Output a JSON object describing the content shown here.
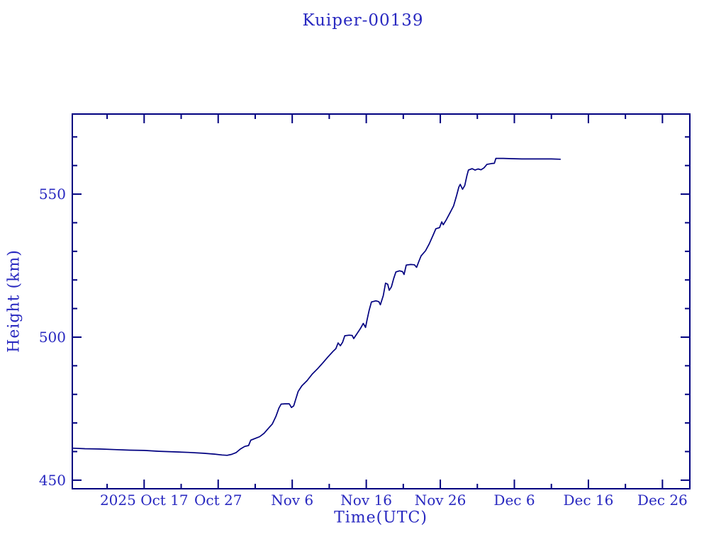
{
  "title": "Kuiper-00139",
  "colors": {
    "text": "#2828c0",
    "line": "#000080",
    "frame": "#000080",
    "background": "#ffffff"
  },
  "chart_data": {
    "type": "line",
    "title": "Kuiper-00139",
    "xlabel": "Time(UTC)",
    "ylabel": "Height (km)",
    "x_unit": "days since 2025 Oct 17 (UTC)",
    "xlim": [
      -9.7,
      73.7
    ],
    "ylim": [
      447,
      578
    ],
    "grid": false,
    "legend": false,
    "x_major_ticks": [
      {
        "value": 0,
        "label": "2025 Oct 17"
      },
      {
        "value": 10,
        "label": "Oct 27"
      },
      {
        "value": 20,
        "label": "Nov  6"
      },
      {
        "value": 30,
        "label": "Nov 16"
      },
      {
        "value": 40,
        "label": "Nov 26"
      },
      {
        "value": 50,
        "label": "Dec  6"
      },
      {
        "value": 60,
        "label": "Dec 16"
      },
      {
        "value": 70,
        "label": "Dec 26"
      }
    ],
    "x_minor_ticks": [
      -5,
      5,
      15,
      25,
      35,
      45,
      55,
      65
    ],
    "y_major_ticks": [
      {
        "value": 450,
        "label": "450"
      },
      {
        "value": 500,
        "label": "500"
      },
      {
        "value": 550,
        "label": "550"
      }
    ],
    "y_minor_ticks": [
      460,
      470,
      480,
      490,
      510,
      520,
      530,
      540,
      560,
      570
    ],
    "series": [
      {
        "name": "height",
        "points": [
          [
            -9.7,
            461.2
          ],
          [
            -8,
            461.0
          ],
          [
            -6,
            460.9
          ],
          [
            -4,
            460.7
          ],
          [
            -2,
            460.5
          ],
          [
            0,
            460.4
          ],
          [
            2,
            460.1
          ],
          [
            4,
            459.9
          ],
          [
            6,
            459.7
          ],
          [
            8,
            459.4
          ],
          [
            9.5,
            459.1
          ],
          [
            10.5,
            458.8
          ],
          [
            11.2,
            458.7
          ],
          [
            11.8,
            459.0
          ],
          [
            12.4,
            459.6
          ],
          [
            13.0,
            460.9
          ],
          [
            13.6,
            461.8
          ],
          [
            14.1,
            462.1
          ],
          [
            14.4,
            464.0
          ],
          [
            15.0,
            464.6
          ],
          [
            15.6,
            465.2
          ],
          [
            16.2,
            466.4
          ],
          [
            16.8,
            468.2
          ],
          [
            17.3,
            469.6
          ],
          [
            17.8,
            472.3
          ],
          [
            18.2,
            475.2
          ],
          [
            18.5,
            476.6
          ],
          [
            19.0,
            476.7
          ],
          [
            19.6,
            476.7
          ],
          [
            19.9,
            475.4
          ],
          [
            20.2,
            476.0
          ],
          [
            20.5,
            478.5
          ],
          [
            20.8,
            481.0
          ],
          [
            21.3,
            483.0
          ],
          [
            22.0,
            484.8
          ],
          [
            22.7,
            487.1
          ],
          [
            23.4,
            488.9
          ],
          [
            24.1,
            490.9
          ],
          [
            24.8,
            493.0
          ],
          [
            25.5,
            495.0
          ],
          [
            25.9,
            496.0
          ],
          [
            26.2,
            498.0
          ],
          [
            26.5,
            497.0
          ],
          [
            26.8,
            498.2
          ],
          [
            27.1,
            500.5
          ],
          [
            27.7,
            500.7
          ],
          [
            28.1,
            500.6
          ],
          [
            28.3,
            499.5
          ],
          [
            28.7,
            501.0
          ],
          [
            29.2,
            503.0
          ],
          [
            29.6,
            504.8
          ],
          [
            29.9,
            503.4
          ],
          [
            30.1,
            506.0
          ],
          [
            30.4,
            509.5
          ],
          [
            30.7,
            512.3
          ],
          [
            31.3,
            512.7
          ],
          [
            31.7,
            512.4
          ],
          [
            31.9,
            511.3
          ],
          [
            32.3,
            514.5
          ],
          [
            32.6,
            518.9
          ],
          [
            32.9,
            518.5
          ],
          [
            33.1,
            516.4
          ],
          [
            33.4,
            517.6
          ],
          [
            33.7,
            520.5
          ],
          [
            34.0,
            522.8
          ],
          [
            34.5,
            523.2
          ],
          [
            34.9,
            522.9
          ],
          [
            35.1,
            521.9
          ],
          [
            35.4,
            525.2
          ],
          [
            36.0,
            525.4
          ],
          [
            36.5,
            525.3
          ],
          [
            36.8,
            524.4
          ],
          [
            37.1,
            526.5
          ],
          [
            37.4,
            528.4
          ],
          [
            38.0,
            530.2
          ],
          [
            38.5,
            532.6
          ],
          [
            39.0,
            535.5
          ],
          [
            39.4,
            537.9
          ],
          [
            39.9,
            538.3
          ],
          [
            40.2,
            540.3
          ],
          [
            40.4,
            539.3
          ],
          [
            40.8,
            541.0
          ],
          [
            41.3,
            543.4
          ],
          [
            41.8,
            545.9
          ],
          [
            42.2,
            549.5
          ],
          [
            42.5,
            552.5
          ],
          [
            42.7,
            553.4
          ],
          [
            43.0,
            551.7
          ],
          [
            43.3,
            553.0
          ],
          [
            43.6,
            556.5
          ],
          [
            43.8,
            558.4
          ],
          [
            44.3,
            558.9
          ],
          [
            44.7,
            558.4
          ],
          [
            45.1,
            558.8
          ],
          [
            45.5,
            558.5
          ],
          [
            45.9,
            559.2
          ],
          [
            46.3,
            560.4
          ],
          [
            46.9,
            560.7
          ],
          [
            47.3,
            560.8
          ],
          [
            47.5,
            562.5
          ],
          [
            48.5,
            562.5
          ],
          [
            49.6,
            562.4
          ],
          [
            51.0,
            562.3
          ],
          [
            53.0,
            562.3
          ],
          [
            55.0,
            562.3
          ],
          [
            56.2,
            562.2
          ]
        ]
      }
    ]
  }
}
